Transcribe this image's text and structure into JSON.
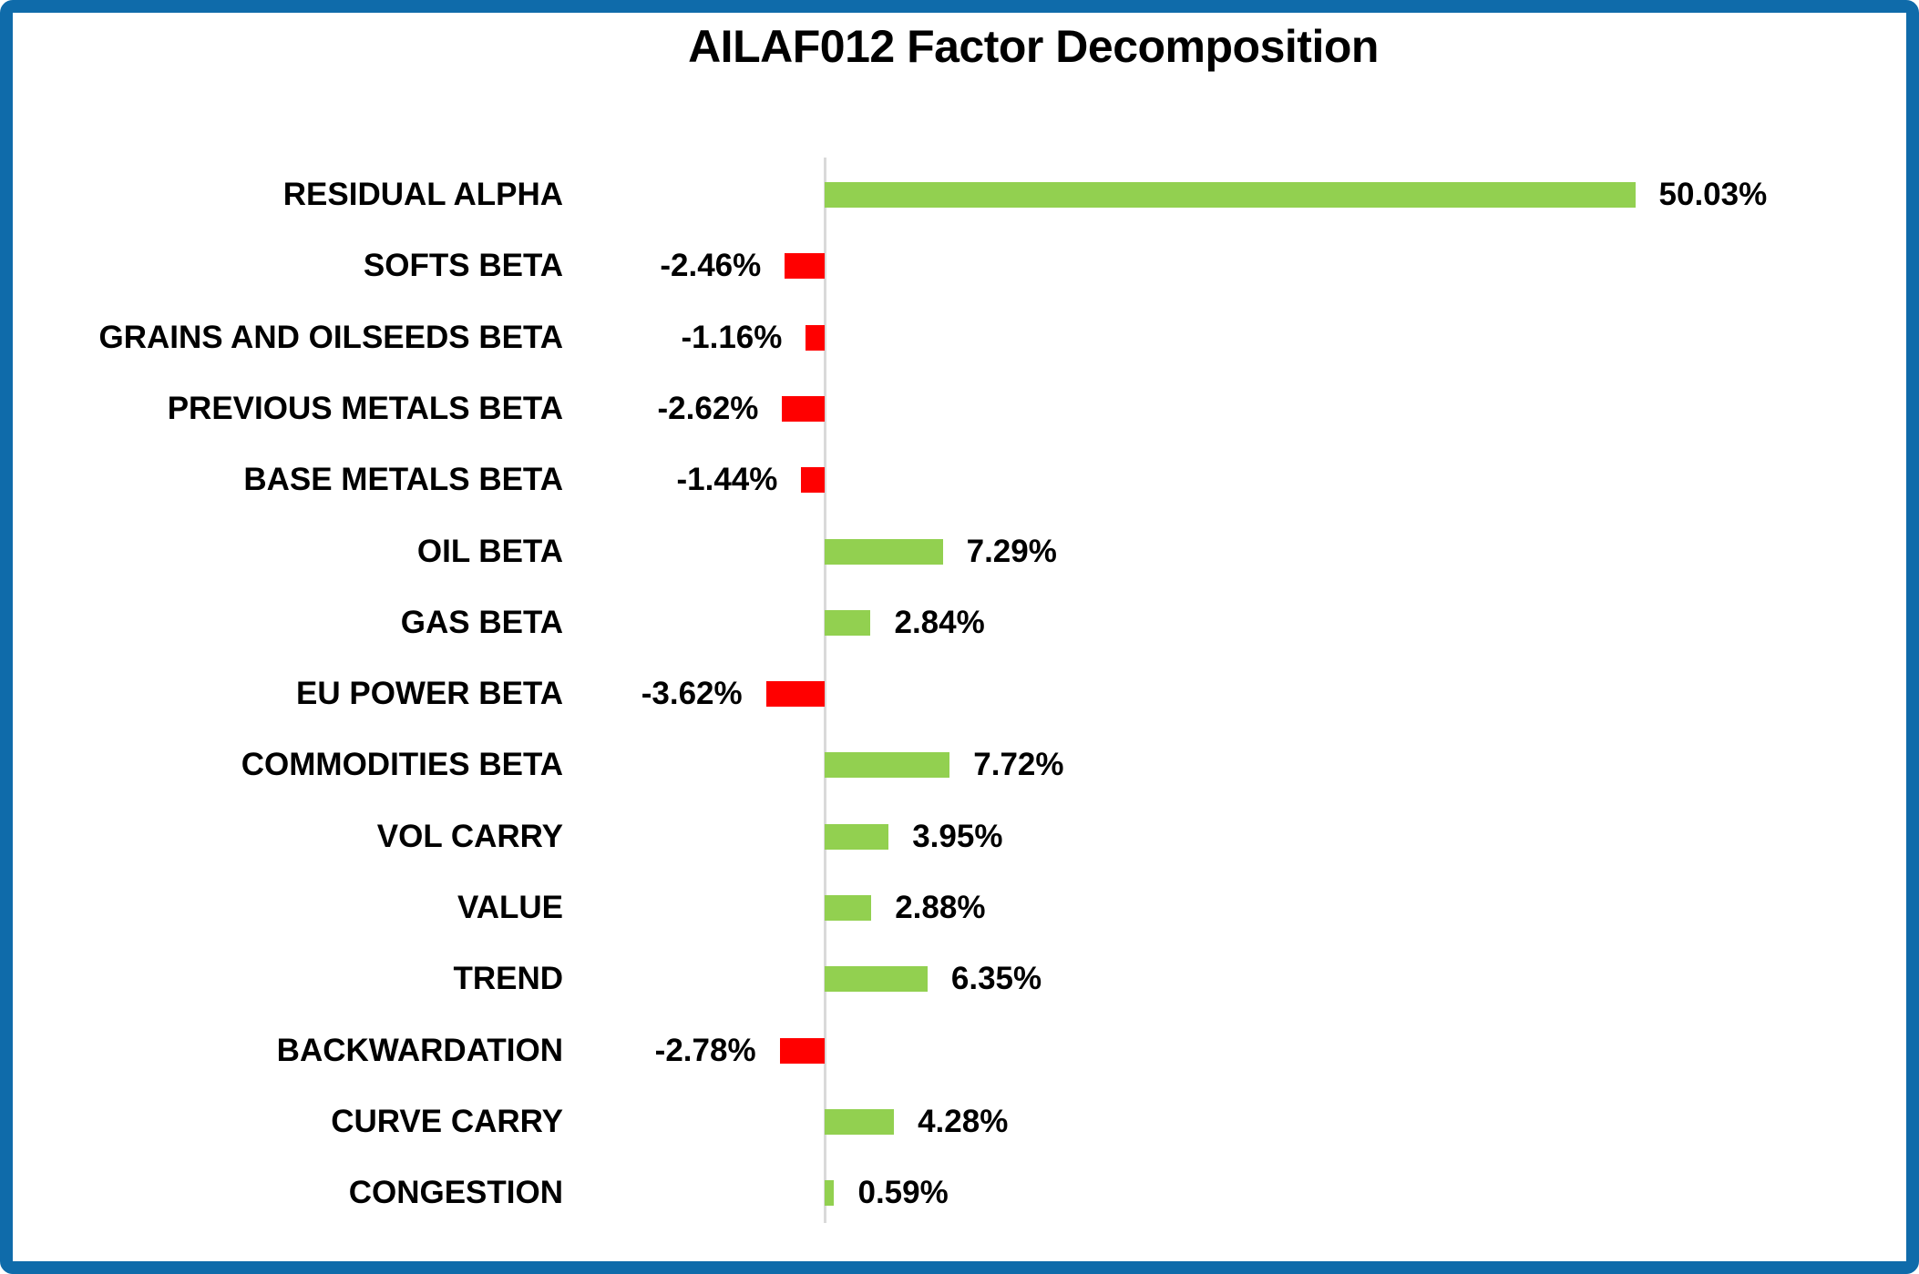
{
  "page": {
    "frame_color": "#0F6BAA",
    "background_color": "#FFFFFF"
  },
  "chart_data": {
    "type": "bar",
    "orientation": "horizontal",
    "title": "AILAF012 Factor Decomposition",
    "categories": [
      "RESIDUAL ALPHA",
      "SOFTS BETA",
      "GRAINS AND OILSEEDS BETA",
      "PREVIOUS METALS BETA",
      "BASE METALS BETA",
      "OIL BETA",
      "GAS BETA",
      "EU POWER BETA",
      "COMMODITIES BETA",
      "VOL CARRY",
      "VALUE",
      "TREND",
      "BACKWARDATION",
      "CURVE CARRY",
      "CONGESTION"
    ],
    "values": [
      50.03,
      -2.46,
      -1.16,
      -2.62,
      -1.44,
      7.29,
      2.84,
      -3.62,
      7.72,
      3.95,
      2.88,
      6.35,
      -2.78,
      4.28,
      0.59
    ],
    "value_labels": [
      "50.03%",
      "-2.46%",
      "-1.16%",
      "-2.62%",
      "-1.44%",
      "7.29%",
      "2.84%",
      "-3.62%",
      "7.72%",
      "3.95%",
      "2.88%",
      "6.35%",
      "-2.78%",
      "4.28%",
      "0.59%"
    ],
    "unit": "%",
    "positive_color": "#92D050",
    "negative_color": "#FF0000",
    "axis_line_color": "#D9D9D9",
    "text_color": "#000000",
    "xlim": [
      -5,
      52
    ],
    "grid": false,
    "legend": false,
    "value_label_position": "end-of-bar"
  }
}
